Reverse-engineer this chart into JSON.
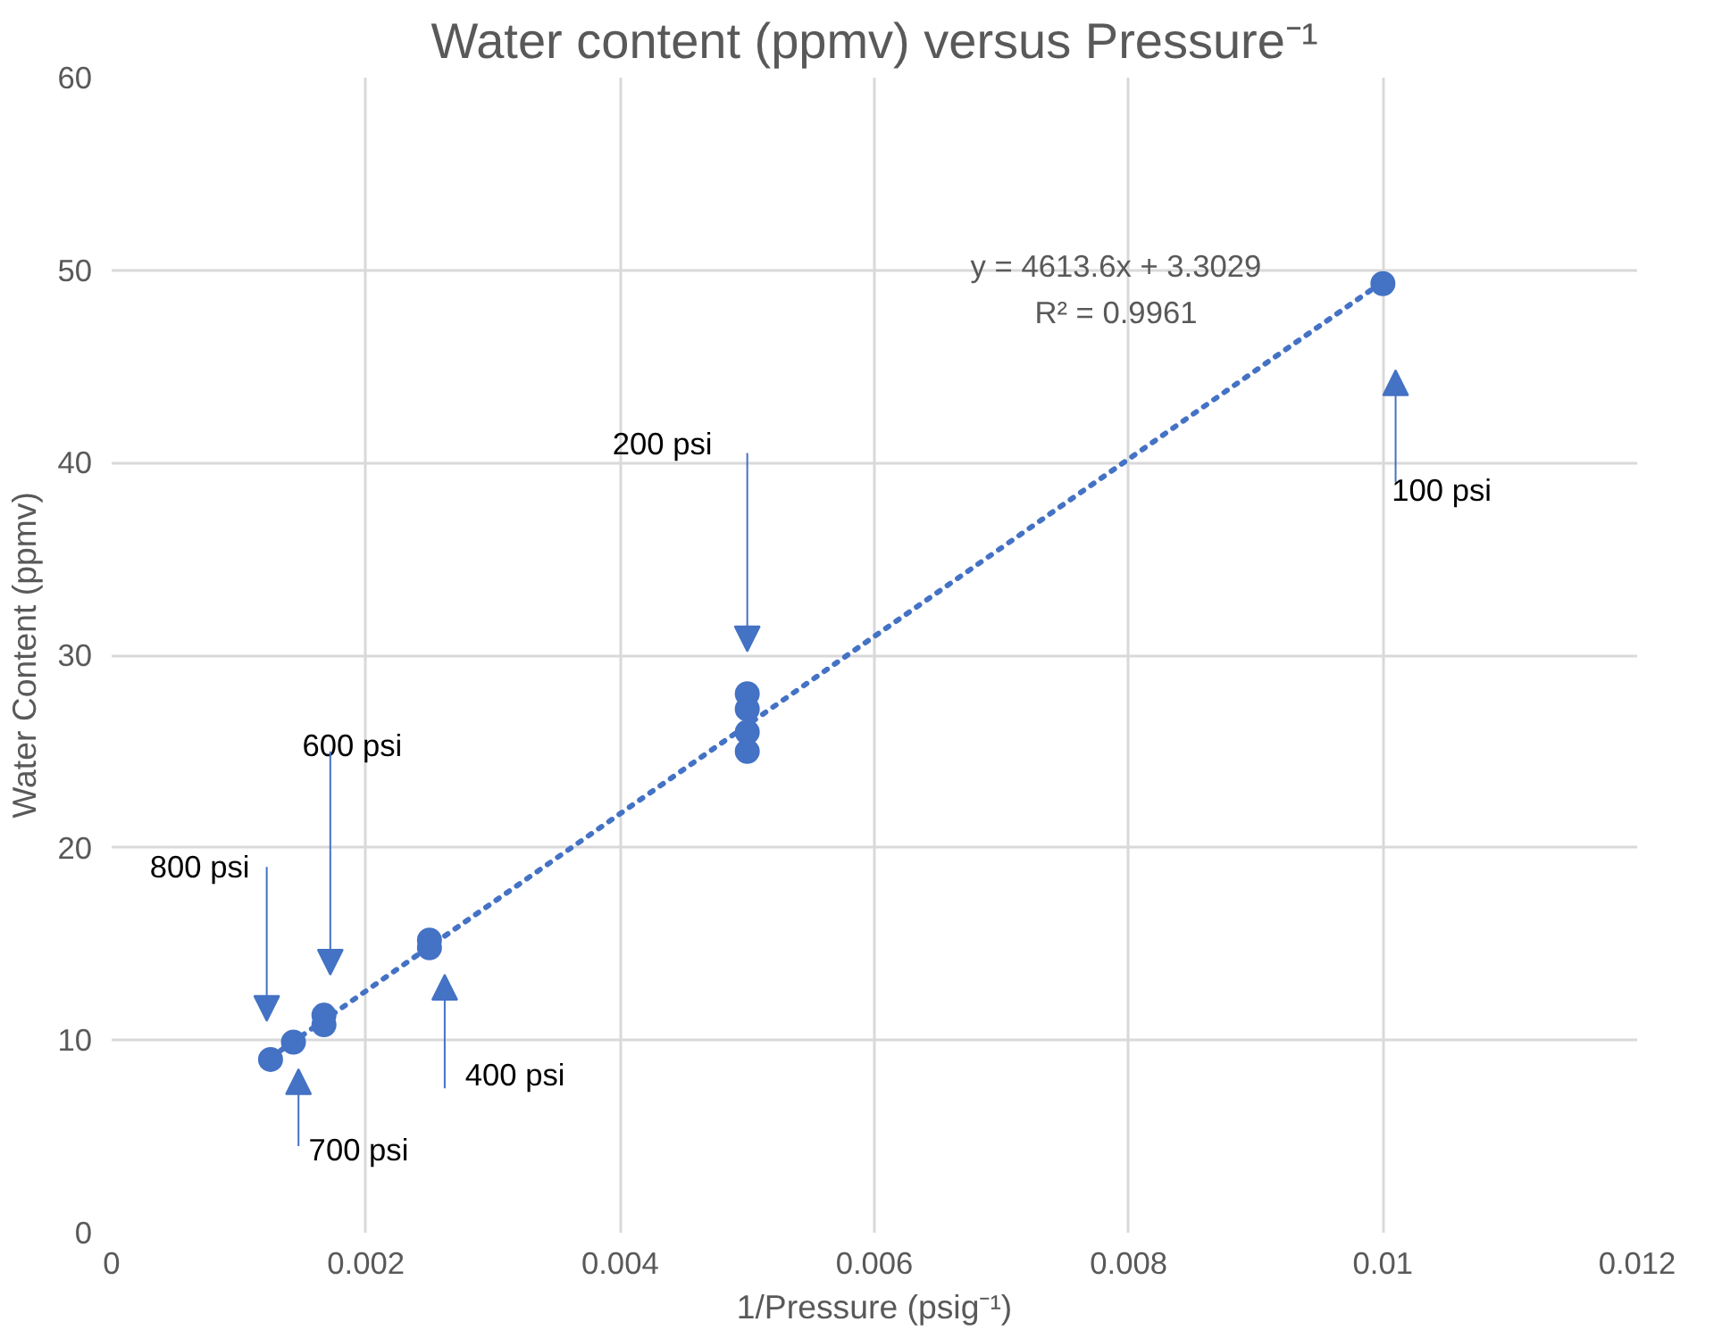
{
  "chart_data": {
    "type": "scatter",
    "title": "Water content (ppmv) versus Pressure⁻¹",
    "xlabel": "1/Pressure (psig⁻¹)",
    "ylabel": "Water Content (ppmv)",
    "xlim": [
      0,
      0.012
    ],
    "xticks": [
      0,
      0.002,
      0.004,
      0.006,
      0.008,
      0.01,
      0.012
    ],
    "ylim": [
      0,
      60
    ],
    "yticks": [
      0,
      10,
      20,
      30,
      40,
      50,
      60
    ],
    "grid": true,
    "series": [
      {
        "marker": "circle",
        "color": "#4472c4",
        "x": [
          0.01,
          0.005,
          0.005,
          0.005,
          0.005,
          0.0025,
          0.0025,
          0.00167,
          0.00167,
          0.00143,
          0.00125
        ],
        "values": [
          49.3,
          28.0,
          27.2,
          26.0,
          25.0,
          15.2,
          14.8,
          11.3,
          10.8,
          9.9,
          9.0
        ]
      },
      {
        "type": "line",
        "marker": "none",
        "color": "#4472c4",
        "line_style": "dotted",
        "x": [
          0.00125,
          0.01
        ],
        "values": [
          9.1,
          49.4
        ]
      }
    ],
    "annotations": [
      "100 psi",
      "200 psi",
      "400 psi",
      "600 psi",
      "700 psi",
      "800 psi",
      "y = 4613.6x + 3.3029",
      "R² = 0.9961"
    ]
  }
}
